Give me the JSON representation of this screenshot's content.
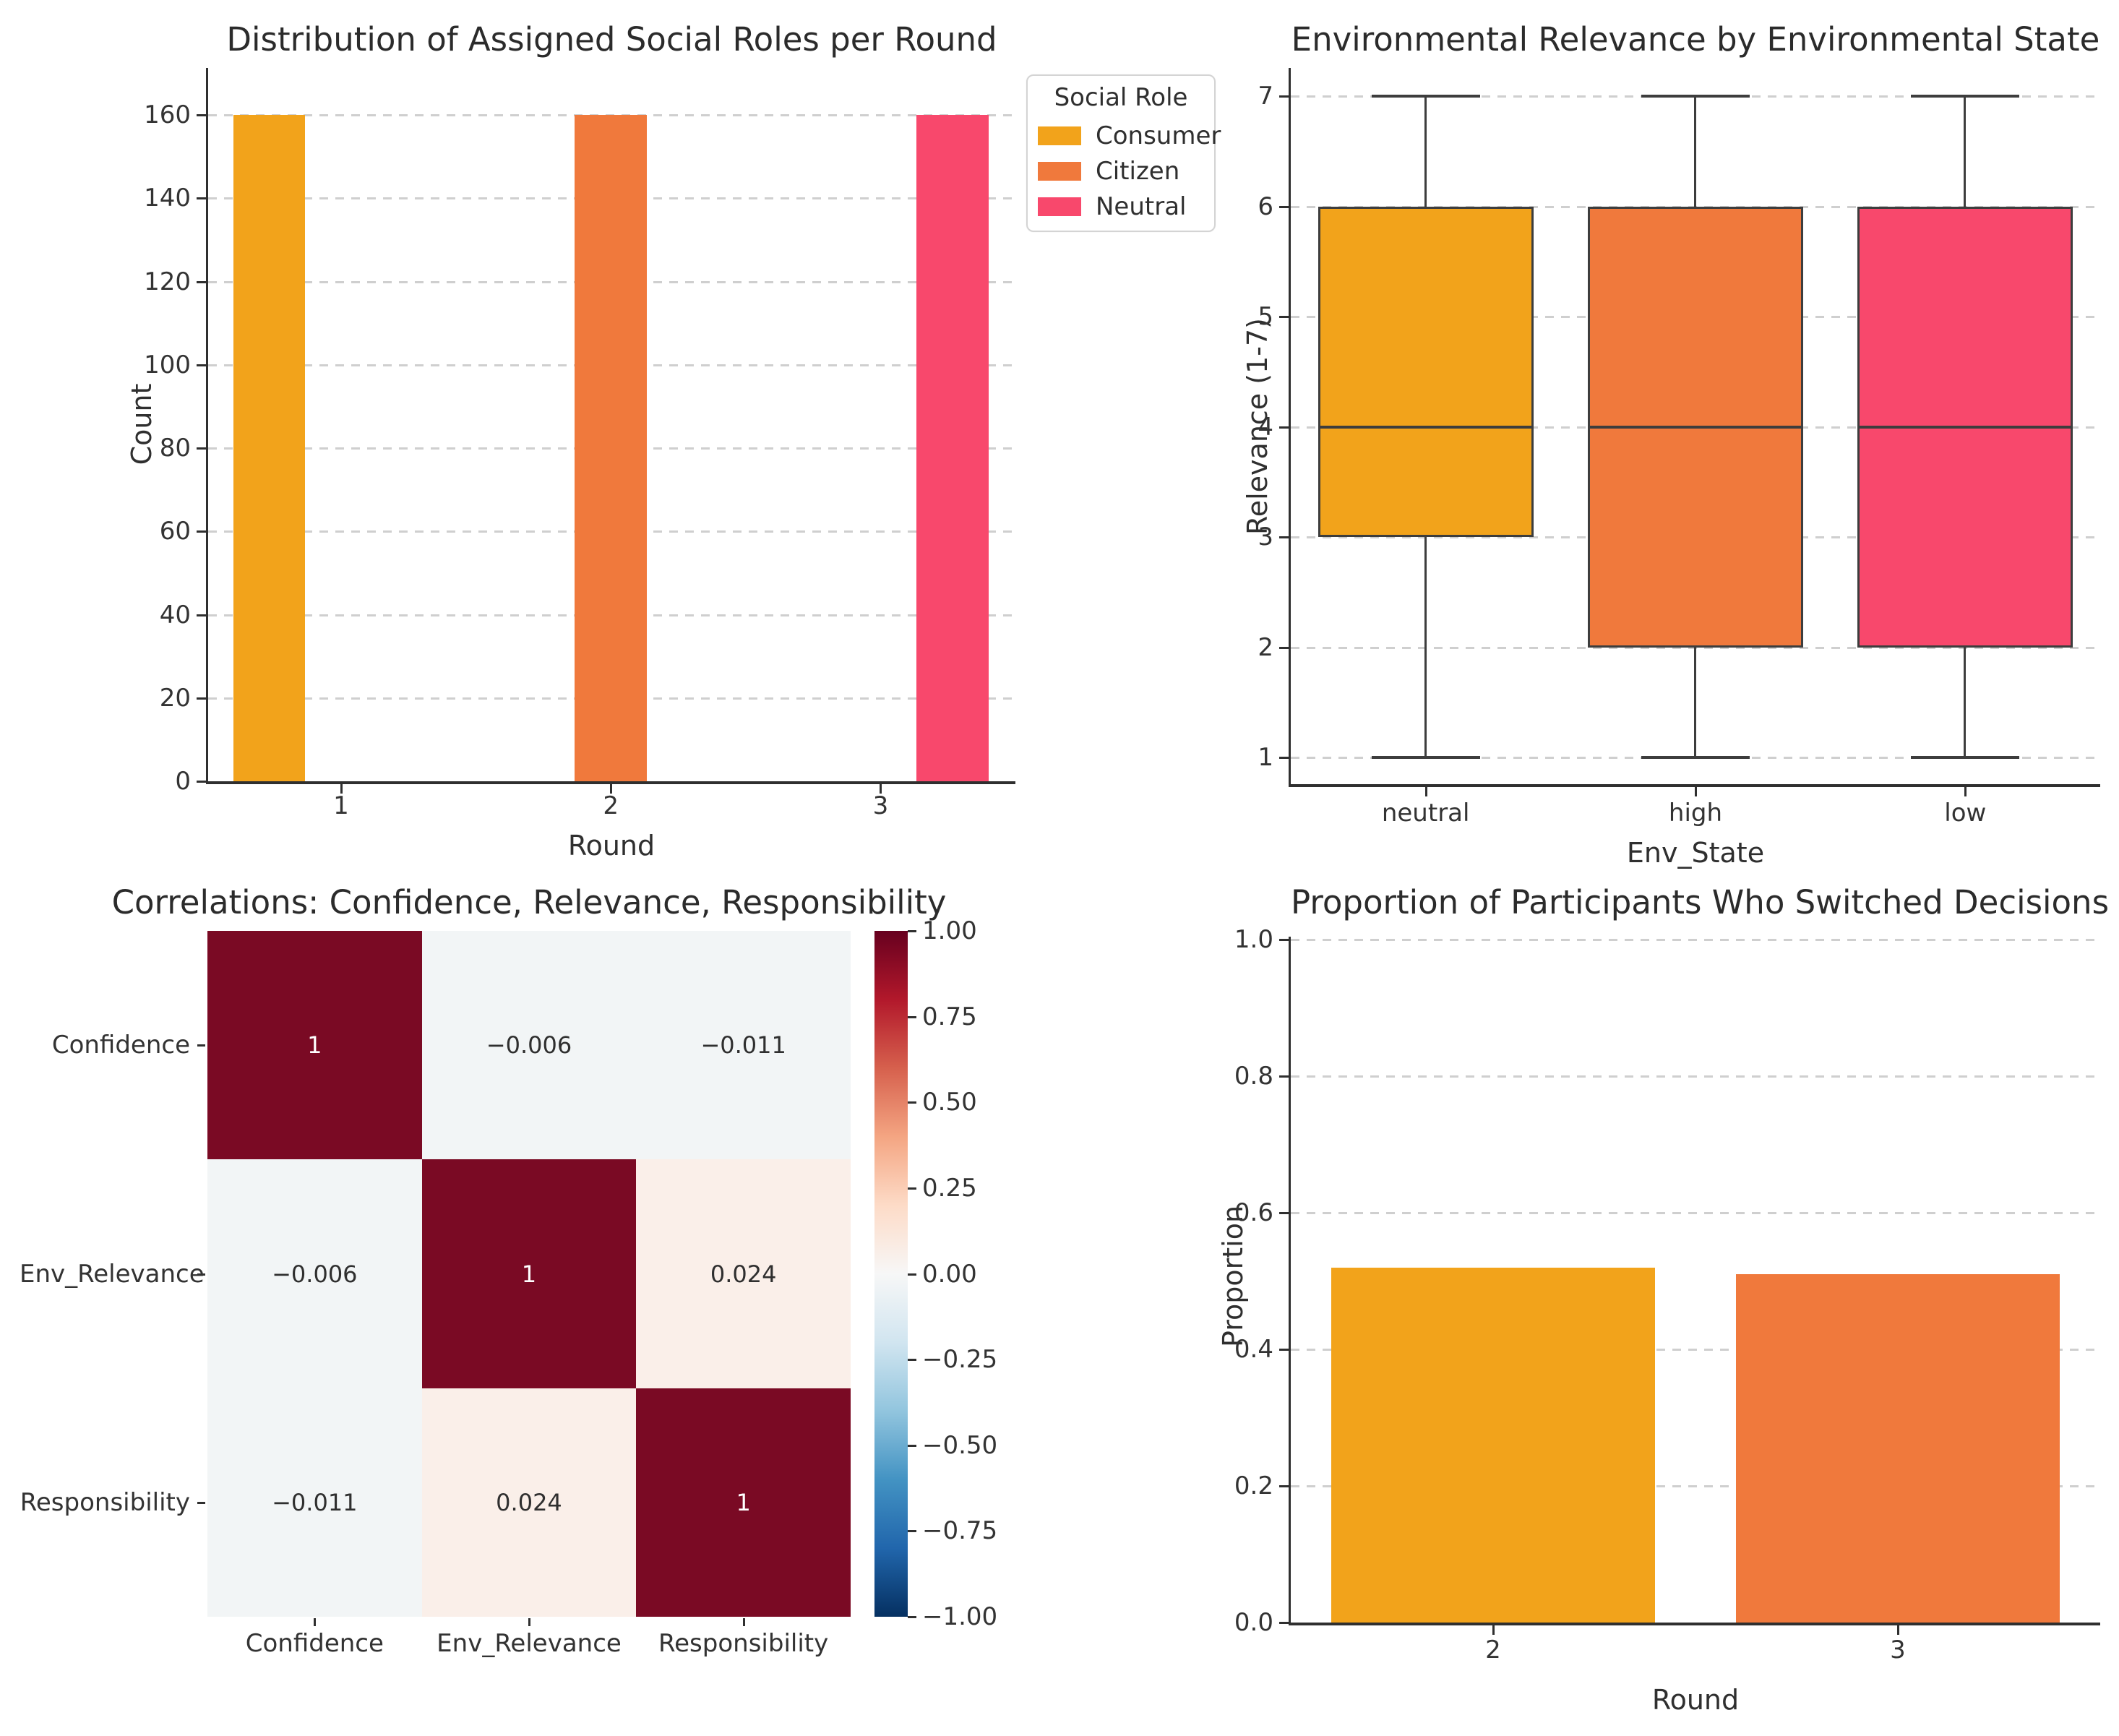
{
  "palette": {
    "consumer": "#F2A31B",
    "citizen": "#F0793C",
    "neutral_role": "#F8486C",
    "spine": "#2f2f2f",
    "grid": "#cfcfcf",
    "title_color": "#2b2b2b",
    "tick_color": "#333333",
    "box_edge": "#3d3d3d",
    "heat_dark": "#7a0a24",
    "heat_neg_light": "#f2f5f6",
    "heat_pos_light": "#faefe9",
    "annot_light": "#ffffff",
    "annot_dark": "#2f2f2f"
  },
  "chart_data": [
    {
      "type": "bar",
      "title": "Distribution of Assigned Social Roles per Round",
      "xlabel": "Round",
      "ylabel": "Count",
      "xticks": [
        "1",
        "2",
        "3"
      ],
      "ytick_values": [
        0,
        20,
        40,
        60,
        80,
        100,
        120,
        140,
        160
      ],
      "yticks": [
        "0",
        "20",
        "40",
        "60",
        "80",
        "100",
        "120",
        "140",
        "160"
      ],
      "xlim": [
        0.507,
        3.5
      ],
      "ylim": [
        0,
        171.3
      ],
      "bars": [
        {
          "role": "Consumer",
          "round": 1,
          "value": 160,
          "center": 0.7333,
          "width": 0.2667,
          "color": "#F2A31B"
        },
        {
          "role": "Citizen",
          "round": 2,
          "value": 160,
          "center": 2.0,
          "width": 0.2667,
          "color": "#F0793C"
        },
        {
          "role": "Neutral",
          "round": 3,
          "value": 160,
          "center": 3.2667,
          "width": 0.2667,
          "color": "#F8486C"
        }
      ],
      "legend": {
        "title": "Social Role",
        "items": [
          {
            "label": "Consumer",
            "color": "#F2A31B"
          },
          {
            "label": "Citizen",
            "color": "#F0793C"
          },
          {
            "label": "Neutral",
            "color": "#F8486C"
          }
        ]
      }
    },
    {
      "type": "box",
      "title": "Environmental Relevance by Environmental State",
      "xlabel": "Env_State",
      "ylabel": "Relevance (1-7)",
      "categories": [
        "neutral",
        "high",
        "low"
      ],
      "ytick_values": [
        1,
        2,
        3,
        4,
        5,
        6,
        7
      ],
      "yticks": [
        "1",
        "2",
        "3",
        "4",
        "5",
        "6",
        "7"
      ],
      "boxes": [
        {
          "category": "neutral",
          "whislo": 1,
          "q1": 3,
          "med": 4,
          "q3": 6,
          "whishi": 7,
          "color": "#F2A31B"
        },
        {
          "category": "high",
          "whislo": 1,
          "q1": 2,
          "med": 4,
          "q3": 6,
          "whishi": 7,
          "color": "#F0793C"
        },
        {
          "category": "low",
          "whislo": 1,
          "q1": 2,
          "med": 4,
          "q3": 6,
          "whishi": 7,
          "color": "#F8486C"
        }
      ]
    },
    {
      "type": "heatmap",
      "title": "Correlations: Confidence, Relevance, Responsibility",
      "labels": [
        "Confidence",
        "Env_Relevance",
        "Responsibility"
      ],
      "matrix": [
        [
          1,
          -0.006,
          -0.011
        ],
        [
          -0.006,
          1,
          0.024
        ],
        [
          -0.011,
          0.024,
          1
        ]
      ],
      "display": [
        [
          "1",
          "−0.006",
          "−0.011"
        ],
        [
          "−0.006",
          "1",
          "0.024"
        ],
        [
          "−0.011",
          "0.024",
          "1"
        ]
      ],
      "colorbar": {
        "ticks": [
          "1.00",
          "0.75",
          "0.50",
          "0.25",
          "0.00",
          "−0.25",
          "−0.50",
          "−0.75",
          "−1.00"
        ],
        "stops": [
          "#67001f",
          "#b2182b",
          "#d6604d",
          "#f4a582",
          "#fddbc7",
          "#f7f7f7",
          "#d1e5f0",
          "#92c5de",
          "#4393c3",
          "#2166ac",
          "#053061"
        ]
      }
    },
    {
      "type": "bar",
      "title": "Proportion of Participants Who Switched Decisions",
      "xlabel": "Round",
      "ylabel": "Proportion",
      "categories": [
        "2",
        "3"
      ],
      "values": [
        0.52,
        0.51
      ],
      "colors": [
        "#F2A31B",
        "#F0793C"
      ],
      "ytick_values": [
        0.0,
        0.2,
        0.4,
        0.6,
        0.8,
        1.0
      ],
      "yticks": [
        "0.0",
        "0.2",
        "0.4",
        "0.6",
        "0.8",
        "1.0"
      ],
      "ylim": [
        0,
        1.0
      ]
    }
  ]
}
